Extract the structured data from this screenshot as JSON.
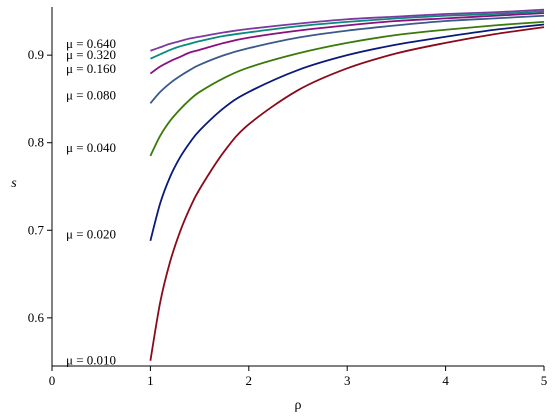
{
  "chart_data": {
    "type": "line",
    "xlabel": "ρ",
    "ylabel": "s",
    "xlim": [
      0,
      5
    ],
    "ylim": [
      0.545,
      0.955
    ],
    "xticks": [
      "0",
      "1",
      "2",
      "3",
      "4",
      "5"
    ],
    "yticks": [
      "0.6",
      "0.7",
      "0.8",
      "0.9"
    ],
    "grid": false,
    "legend": "inline labels at left",
    "x": [
      1.0,
      1.1,
      1.2,
      1.3,
      1.4,
      1.5,
      1.75,
      2.0,
      2.5,
      3.0,
      3.5,
      4.0,
      4.5,
      5.0
    ],
    "series": [
      {
        "name": "μ = 0.010",
        "color": "#8b0a1a",
        "label_y": 0.551,
        "values": [
          0.551,
          0.618,
          0.664,
          0.698,
          0.725,
          0.747,
          0.79,
          0.821,
          0.86,
          0.885,
          0.902,
          0.914,
          0.924,
          0.932
        ]
      },
      {
        "name": "μ = 0.020",
        "color": "#0a1a7a",
        "label_y": 0.695,
        "values": [
          0.688,
          0.731,
          0.761,
          0.783,
          0.8,
          0.814,
          0.84,
          0.858,
          0.883,
          0.9,
          0.912,
          0.921,
          0.929,
          0.935
        ]
      },
      {
        "name": "μ = 0.040",
        "color": "#3a7a0a",
        "label_y": 0.794,
        "values": [
          0.785,
          0.808,
          0.825,
          0.838,
          0.849,
          0.858,
          0.874,
          0.886,
          0.902,
          0.914,
          0.923,
          0.929,
          0.934,
          0.938
        ]
      },
      {
        "name": "μ = 0.080",
        "color": "#3a5a8a",
        "label_y": 0.854,
        "values": [
          0.845,
          0.858,
          0.868,
          0.876,
          0.883,
          0.889,
          0.9,
          0.908,
          0.92,
          0.928,
          0.934,
          0.939,
          0.942,
          0.945
        ]
      },
      {
        "name": "μ = 0.160",
        "color": "#8a1080",
        "label_y": 0.884,
        "values": [
          0.879,
          0.887,
          0.893,
          0.898,
          0.903,
          0.906,
          0.914,
          0.92,
          0.928,
          0.934,
          0.939,
          0.942,
          0.945,
          0.948
        ]
      },
      {
        "name": "μ = 0.320",
        "color": "#0a8a7a",
        "label_y": 0.9,
        "values": [
          0.896,
          0.901,
          0.906,
          0.91,
          0.913,
          0.916,
          0.922,
          0.926,
          0.933,
          0.938,
          0.942,
          0.945,
          0.947,
          0.95
        ]
      },
      {
        "name": "μ = 0.640",
        "color": "#7a3aa0",
        "label_y": 0.913,
        "values": [
          0.905,
          0.909,
          0.913,
          0.916,
          0.919,
          0.921,
          0.926,
          0.93,
          0.936,
          0.941,
          0.944,
          0.947,
          0.949,
          0.952
        ]
      }
    ]
  }
}
